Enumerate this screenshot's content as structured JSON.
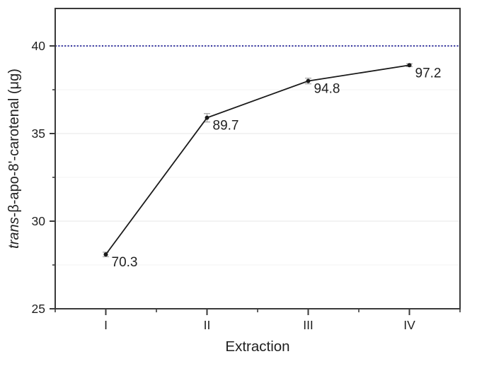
{
  "figure": {
    "background": "#ffffff"
  },
  "chart_data": {
    "type": "line",
    "title": "",
    "xlabel": "Extraction",
    "ylabel_italic": "trans",
    "ylabel_rest": "-β-apo-8'-carotenal (μg)",
    "categories": [
      "I",
      "II",
      "III",
      "IV"
    ],
    "series": [
      {
        "name": "trans-beta-apo-8-carotenal",
        "values": [
          28.1,
          35.9,
          38.0,
          38.9
        ],
        "errors": [
          0.13,
          0.24,
          0.16,
          0.08
        ],
        "point_labels": [
          "70.3",
          "89.7",
          "94.8",
          "97.2"
        ],
        "color": "#1a1a1a"
      }
    ],
    "yticks": [
      25,
      30,
      35,
      40
    ],
    "yticks_minor": [
      27.5,
      32.5,
      37.5
    ],
    "ylim": [
      25,
      42.1
    ],
    "grid": "on",
    "legend": "none",
    "reference_line": {
      "value": 40,
      "color": "#3333a0",
      "style": "dotted"
    },
    "colors": {
      "axis": "#3a3a3a",
      "grid_major": "#e7e7e7",
      "grid_minor": "#f3f3f3",
      "error_bar": "#ababab",
      "text": "#1f1f1f"
    }
  }
}
